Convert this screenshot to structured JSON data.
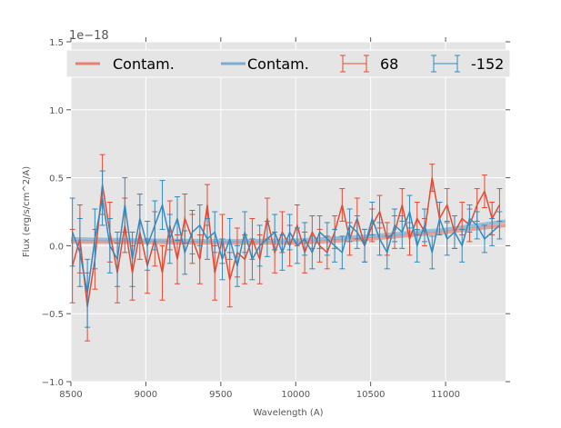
{
  "chart_data": {
    "type": "line",
    "title": "",
    "xlabel": "Wavelength (A)",
    "ylabel": "Flux (erg/s/cm^2/A)",
    "y_offset_label": "1e−18",
    "xlim": [
      8500,
      11400
    ],
    "ylim": [
      -1.0,
      1.5
    ],
    "xticks": [
      8500,
      9000,
      9500,
      10000,
      10500,
      11000
    ],
    "yticks": [
      -1.0,
      -0.5,
      0.0,
      0.5,
      1.0,
      1.5
    ],
    "ytick_labels": [
      "−1.0",
      "−0.5",
      "0.0",
      "0.5",
      "1.0",
      "1.5"
    ],
    "grid": true,
    "legend_position": "top",
    "legend": [
      "Contam.",
      "Contam.",
      "68",
      "-152"
    ],
    "x_start": 8510,
    "x_step": 50,
    "series": [
      {
        "name": "Contam.",
        "kind": "line",
        "color": "#E8816E",
        "x": [
          8500,
          9000,
          9500,
          10000,
          10500,
          11000,
          11400
        ],
        "y": [
          0.03,
          0.025,
          0.02,
          0.02,
          0.05,
          0.1,
          0.15
        ]
      },
      {
        "name": "Contam.",
        "kind": "line",
        "color": "#79ADD2",
        "x": [
          8500,
          9000,
          9500,
          10000,
          10500,
          11000,
          11400
        ],
        "y": [
          0.05,
          0.04,
          0.035,
          0.04,
          0.07,
          0.12,
          0.18
        ]
      },
      {
        "name": "68",
        "kind": "errorbar",
        "color": "#E24A33",
        "y": [
          -0.15,
          0.05,
          -0.45,
          -0.1,
          0.45,
          0.1,
          -0.2,
          0.15,
          -0.2,
          0.1,
          -0.15,
          0.05,
          -0.2,
          0.15,
          -0.1,
          0.2,
          0.05,
          -0.1,
          0.3,
          -0.2,
          0.05,
          -0.25,
          -0.05,
          -0.1,
          0.05,
          -0.1,
          0.2,
          -0.05,
          0.1,
          0.0,
          0.15,
          -0.05,
          0.1,
          0.0,
          -0.05,
          0.1,
          0.3,
          0.05,
          0.2,
          0.0,
          0.15,
          0.25,
          0.05,
          0.1,
          0.3,
          0.05,
          0.2,
          0.1,
          0.5,
          0.2,
          0.3,
          0.1,
          0.2,
          0.15,
          0.3,
          0.4,
          0.2,
          0.3
        ],
        "yerr": [
          0.27,
          0.25,
          0.25,
          0.22,
          0.22,
          0.22,
          0.22,
          0.2,
          0.2,
          0.2,
          0.2,
          0.2,
          0.2,
          0.18,
          0.18,
          0.18,
          0.18,
          0.18,
          0.15,
          0.2,
          0.18,
          0.2,
          0.18,
          0.18,
          0.15,
          0.18,
          0.15,
          0.15,
          0.15,
          0.15,
          0.15,
          0.15,
          0.12,
          0.12,
          0.12,
          0.12,
          0.12,
          0.12,
          0.15,
          0.12,
          0.12,
          0.12,
          0.12,
          0.12,
          0.12,
          0.12,
          0.12,
          0.1,
          0.1,
          0.12,
          0.12,
          0.12,
          0.12,
          0.12,
          0.12,
          0.12,
          0.12,
          0.12
        ]
      },
      {
        "name": "-152",
        "kind": "errorbar",
        "color": "#348ABD",
        "y": [
          0.1,
          -0.05,
          -0.35,
          0.05,
          0.35,
          0.0,
          -0.1,
          0.3,
          -0.1,
          0.2,
          0.0,
          0.15,
          0.3,
          0.05,
          0.2,
          -0.05,
          0.1,
          0.15,
          0.05,
          0.1,
          -0.1,
          0.05,
          -0.15,
          0.1,
          -0.1,
          0.0,
          0.05,
          0.1,
          -0.05,
          0.1,
          0.0,
          0.05,
          -0.05,
          0.1,
          0.05,
          0.0,
          -0.05,
          0.15,
          0.1,
          0.0,
          0.2,
          0.05,
          -0.05,
          0.15,
          0.1,
          0.25,
          0.0,
          0.15,
          -0.05,
          0.2,
          0.05,
          0.1,
          0.0,
          0.2,
          0.15,
          0.05,
          0.1,
          0.15
        ],
        "yerr": [
          0.25,
          0.25,
          0.25,
          0.22,
          0.2,
          0.2,
          0.2,
          0.2,
          0.2,
          0.18,
          0.18,
          0.18,
          0.18,
          0.18,
          0.16,
          0.16,
          0.16,
          0.15,
          0.15,
          0.15,
          0.15,
          0.15,
          0.15,
          0.15,
          0.15,
          0.15,
          0.13,
          0.13,
          0.13,
          0.13,
          0.13,
          0.12,
          0.12,
          0.12,
          0.12,
          0.12,
          0.12,
          0.12,
          0.12,
          0.12,
          0.12,
          0.12,
          0.12,
          0.12,
          0.12,
          0.12,
          0.12,
          0.12,
          0.12,
          0.12,
          0.12,
          0.12,
          0.12,
          0.1,
          0.1,
          0.1,
          0.1,
          0.1
        ]
      }
    ]
  }
}
